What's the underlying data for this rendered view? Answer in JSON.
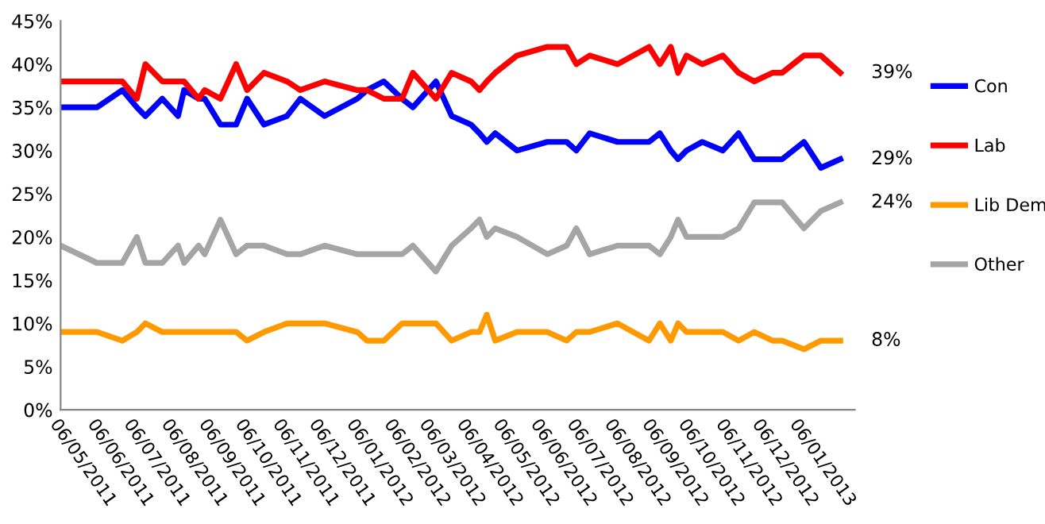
{
  "chart_data": {
    "type": "line",
    "x": [
      "2011-05-06",
      "2011-06-05",
      "2011-06-26",
      "2011-07-08",
      "2011-07-15",
      "2011-07-29",
      "2011-08-11",
      "2011-08-16",
      "2011-08-28",
      "2011-09-02",
      "2011-09-15",
      "2011-09-28",
      "2011-10-07",
      "2011-10-21",
      "2011-11-09",
      "2011-11-20",
      "2011-12-10",
      "2012-01-06",
      "2012-01-14",
      "2012-01-28",
      "2012-02-12",
      "2012-02-21",
      "2012-03-11",
      "2012-03-24",
      "2012-04-09",
      "2012-04-16",
      "2012-04-22",
      "2012-04-29",
      "2012-05-17",
      "2012-06-11",
      "2012-06-27",
      "2012-07-05",
      "2012-07-16",
      "2012-08-08",
      "2012-09-03",
      "2012-09-12",
      "2012-09-21",
      "2012-09-27",
      "2012-10-04",
      "2012-10-17",
      "2012-11-03",
      "2012-11-16",
      "2012-11-29",
      "2012-12-14",
      "2012-12-22",
      "2013-01-09",
      "2013-01-23",
      "2013-02-08"
    ],
    "series": [
      {
        "name": "Con",
        "color": "#0000ff",
        "values": [
          35,
          35,
          37,
          35,
          34,
          36,
          34,
          37,
          36,
          36,
          33,
          33,
          36,
          33,
          34,
          36,
          34,
          36,
          37,
          38,
          36,
          35,
          38,
          34,
          33,
          32,
          31,
          32,
          30,
          31,
          31,
          30,
          32,
          31,
          31,
          32,
          30,
          29,
          30,
          31,
          30,
          32,
          29,
          29,
          29,
          31,
          28,
          29
        ]
      },
      {
        "name": "Lab",
        "color": "#ff0000",
        "values": [
          38,
          38,
          38,
          36,
          40,
          38,
          38,
          38,
          36,
          37,
          36,
          40,
          37,
          39,
          38,
          37,
          38,
          37,
          37,
          36,
          36,
          39,
          36,
          39,
          38,
          37,
          38,
          39,
          41,
          42,
          42,
          40,
          41,
          40,
          42,
          40,
          42,
          39,
          41,
          40,
          41,
          39,
          38,
          39,
          39,
          41,
          41,
          39
        ]
      },
      {
        "name": "Lib Dem",
        "color": "#ff9900",
        "values": [
          9,
          9,
          8,
          9,
          10,
          9,
          9,
          9,
          9,
          9,
          9,
          9,
          8,
          9,
          10,
          10,
          10,
          9,
          8,
          8,
          10,
          10,
          10,
          8,
          9,
          9,
          11,
          8,
          9,
          9,
          8,
          9,
          9,
          10,
          8,
          10,
          8,
          10,
          9,
          9,
          9,
          8,
          9,
          8,
          8,
          7,
          8,
          8
        ]
      },
      {
        "name": "Other",
        "color": "#a5a5a5",
        "values": [
          19,
          17,
          17,
          20,
          17,
          17,
          19,
          17,
          19,
          18,
          22,
          18,
          19,
          19,
          18,
          18,
          19,
          18,
          18,
          18,
          18,
          19,
          16,
          19,
          21,
          22,
          20,
          21,
          20,
          18,
          19,
          21,
          18,
          19,
          19,
          18,
          20,
          22,
          20,
          20,
          20,
          21,
          24,
          24,
          24,
          21,
          23,
          24
        ]
      }
    ],
    "xlim": [
      "2011-05-06",
      "2013-02-20"
    ],
    "xticks": [
      {
        "value": "2011-05-06",
        "label": "06/05/2011"
      },
      {
        "value": "2011-06-06",
        "label": "06/06/2011"
      },
      {
        "value": "2011-07-06",
        "label": "06/07/2011"
      },
      {
        "value": "2011-08-06",
        "label": "06/08/2011"
      },
      {
        "value": "2011-09-06",
        "label": "06/09/2011"
      },
      {
        "value": "2011-10-06",
        "label": "06/10/2011"
      },
      {
        "value": "2011-11-06",
        "label": "06/11/2011"
      },
      {
        "value": "2011-12-06",
        "label": "06/12/2011"
      },
      {
        "value": "2012-01-06",
        "label": "06/01/2012"
      },
      {
        "value": "2012-02-06",
        "label": "06/02/2012"
      },
      {
        "value": "2012-03-06",
        "label": "06/03/2012"
      },
      {
        "value": "2012-04-06",
        "label": "06/04/2012"
      },
      {
        "value": "2012-05-06",
        "label": "06/05/2012"
      },
      {
        "value": "2012-06-06",
        "label": "06/06/2012"
      },
      {
        "value": "2012-07-06",
        "label": "06/07/2012"
      },
      {
        "value": "2012-08-06",
        "label": "06/08/2012"
      },
      {
        "value": "2012-09-06",
        "label": "06/09/2012"
      },
      {
        "value": "2012-10-06",
        "label": "06/10/2012"
      },
      {
        "value": "2012-11-06",
        "label": "06/11/2012"
      },
      {
        "value": "2012-12-06",
        "label": "06/12/2012"
      },
      {
        "value": "2013-01-06",
        "label": "06/01/2013"
      }
    ],
    "ylim": [
      0,
      45
    ],
    "yticks": [
      {
        "value": 0,
        "label": "0%"
      },
      {
        "value": 5,
        "label": "5%"
      },
      {
        "value": 10,
        "label": "10%"
      },
      {
        "value": 15,
        "label": "15%"
      },
      {
        "value": 20,
        "label": "20%"
      },
      {
        "value": 25,
        "label": "25%"
      },
      {
        "value": 30,
        "label": "30%"
      },
      {
        "value": 35,
        "label": "35%"
      },
      {
        "value": 40,
        "label": "40%"
      },
      {
        "value": 45,
        "label": "45%"
      }
    ],
    "annotations": [
      {
        "text": "39%",
        "x": "2013-02-08",
        "y": 39
      },
      {
        "text": "29%",
        "x": "2013-02-08",
        "y": 29
      },
      {
        "text": "24%",
        "x": "2013-02-08",
        "y": 24
      },
      {
        "text": "8%",
        "x": "2013-02-08",
        "y": 8
      }
    ],
    "grid": false,
    "legend": "right",
    "marker": "none",
    "line_style": "solid"
  }
}
